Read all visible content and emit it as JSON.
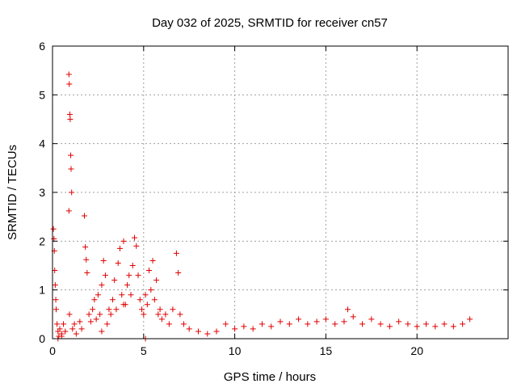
{
  "chart_data": {
    "type": "scatter",
    "title": "Day 032 of 2025, SRMTID for receiver cn57",
    "xlabel": "GPS time / hours",
    "ylabel": "SRMTID / TECUs",
    "xlim": [
      0,
      25
    ],
    "ylim": [
      0,
      6
    ],
    "xticks": [
      0,
      5,
      10,
      15,
      20
    ],
    "xtick_labels": [
      "0",
      "5",
      "10",
      "15",
      "20"
    ],
    "yticks": [
      0,
      1,
      2,
      3,
      4,
      5,
      6
    ],
    "ytick_labels": [
      "0",
      "1",
      "2",
      "3",
      "4",
      "5",
      "6"
    ],
    "grid": true,
    "marker": "+",
    "series_color": "#e00000",
    "series": [
      {
        "name": "SRMTID",
        "x": [
          0.05,
          0.08,
          0.1,
          0.12,
          0.15,
          0.18,
          0.2,
          0.25,
          0.3,
          0.35,
          0.4,
          0.5,
          0.6,
          0.7,
          0.9,
          0.92,
          0.95,
          0.97,
          1.0,
          1.02,
          1.05,
          0.9,
          0.93,
          1.1,
          1.2,
          1.3,
          1.5,
          1.6,
          1.75,
          1.8,
          1.85,
          1.9,
          2.0,
          2.1,
          2.2,
          2.3,
          2.4,
          2.5,
          2.6,
          2.7,
          2.8,
          2.9,
          3.0,
          3.1,
          3.2,
          3.3,
          3.4,
          3.5,
          3.6,
          3.7,
          3.8,
          3.9,
          4.0,
          4.1,
          4.2,
          4.3,
          4.4,
          4.5,
          4.6,
          4.7,
          4.8,
          4.9,
          5.0,
          5.1,
          5.2,
          5.3,
          5.4,
          5.5,
          5.6,
          5.7,
          5.8,
          5.9,
          6.0,
          6.2,
          6.4,
          6.6,
          6.8,
          6.9,
          7.0,
          7.2,
          7.5,
          8.0,
          8.5,
          9.0,
          9.5,
          10.0,
          10.5,
          11.0,
          11.5,
          12.0,
          12.5,
          13.0,
          13.5,
          14.0,
          14.5,
          15.0,
          15.5,
          16.0,
          16.2,
          16.5,
          17.0,
          17.5,
          18.0,
          18.5,
          19.0,
          19.5,
          20.0,
          20.5,
          21.0,
          21.5,
          22.0,
          22.5,
          22.9,
          5.1,
          0.3,
          0.5,
          2.7,
          3.9
        ],
        "y": [
          2.25,
          2.05,
          1.8,
          1.4,
          1.1,
          0.8,
          0.6,
          0.3,
          0.15,
          0.05,
          0.2,
          0.1,
          0.3,
          0.15,
          5.42,
          5.22,
          4.6,
          4.5,
          3.76,
          3.48,
          3.0,
          2.62,
          0.5,
          0.2,
          0.3,
          0.1,
          0.35,
          0.2,
          2.52,
          1.88,
          1.62,
          1.35,
          0.5,
          0.35,
          0.6,
          0.8,
          0.4,
          0.9,
          0.5,
          1.1,
          1.6,
          1.3,
          0.3,
          0.6,
          0.5,
          0.8,
          1.2,
          0.6,
          1.55,
          1.85,
          0.9,
          2.0,
          0.7,
          1.1,
          1.3,
          0.9,
          1.5,
          2.07,
          1.9,
          1.3,
          0.8,
          0.6,
          0.5,
          0.9,
          0.7,
          1.4,
          1.0,
          1.6,
          0.8,
          1.2,
          0.5,
          0.6,
          0.4,
          0.5,
          0.3,
          0.6,
          1.75,
          1.35,
          0.5,
          0.3,
          0.2,
          0.15,
          0.1,
          0.15,
          0.3,
          0.2,
          0.25,
          0.2,
          0.3,
          0.25,
          0.35,
          0.3,
          0.4,
          0.3,
          0.35,
          0.4,
          0.3,
          0.35,
          0.6,
          0.45,
          0.3,
          0.4,
          0.3,
          0.25,
          0.35,
          0.3,
          0.25,
          0.3,
          0.25,
          0.3,
          0.25,
          0.3,
          0.4,
          0.0,
          0.0,
          0.05,
          0.15,
          0.7
        ]
      }
    ]
  }
}
